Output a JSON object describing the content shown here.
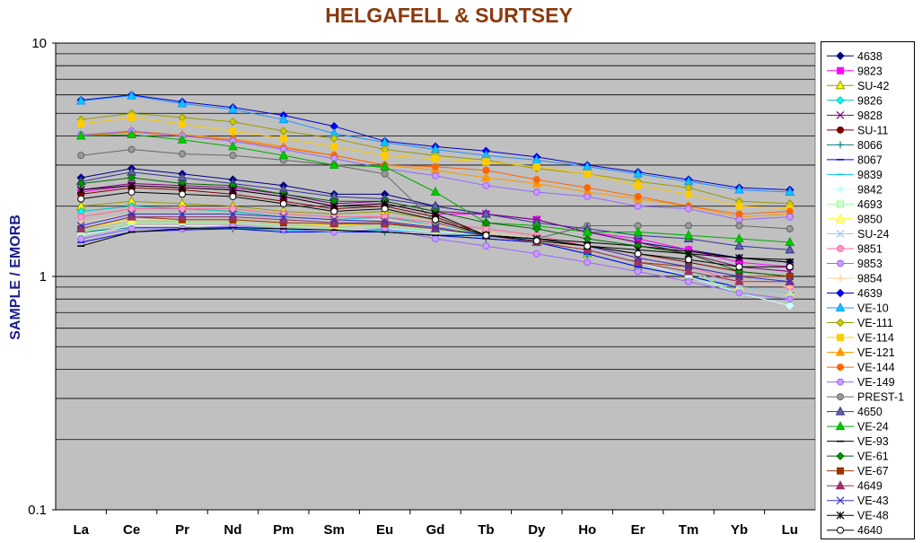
{
  "chart_data": {
    "type": "line",
    "title": "HELGAFELL & SURTSEY",
    "xlabel": "",
    "ylabel": "SAMPLE / EMORB",
    "yscale": "log",
    "ylim": [
      0.1,
      10
    ],
    "y_ticks": [
      "10",
      "1",
      "0.1"
    ],
    "grid": true,
    "legend_position": "right",
    "categories": [
      "La",
      "Ce",
      "Pr",
      "Nd",
      "Pm",
      "Sm",
      "Eu",
      "Gd",
      "Tb",
      "Dy",
      "Ho",
      "Er",
      "Tm",
      "Yb",
      "Lu"
    ],
    "series": [
      {
        "name": "4638",
        "color": "#000080",
        "marker": "diamond",
        "fill": "#000080",
        "values": [
          2.65,
          2.9,
          2.75,
          2.6,
          2.45,
          2.25,
          2.25,
          2.0,
          1.85,
          1.75,
          1.55,
          1.4,
          1.3,
          1.2,
          1.15
        ]
      },
      {
        "name": "9823",
        "color": "#ff00ff",
        "marker": "square",
        "fill": "#ff00ff",
        "values": [
          2.3,
          2.45,
          2.4,
          2.35,
          2.2,
          2.0,
          2.05,
          1.85,
          1.85,
          1.75,
          1.55,
          1.45,
          1.3,
          1.15,
          1.1
        ]
      },
      {
        "name": "SU-42",
        "color": "#999900",
        "marker": "triangle",
        "fill": "#ffff00",
        "values": [
          2.0,
          2.1,
          2.05,
          2.0,
          1.9,
          1.85,
          1.9,
          1.75,
          1.5,
          1.4,
          1.25,
          1.1,
          1.0,
          0.9,
          0.85
        ]
      },
      {
        "name": "9826",
        "color": "#00bfbf",
        "marker": "diamond",
        "fill": "#00ffff",
        "values": [
          1.9,
          2.0,
          1.95,
          1.9,
          1.8,
          1.75,
          1.8,
          1.65,
          1.5,
          1.4,
          1.25,
          1.1,
          1.0,
          0.85,
          0.8
        ]
      },
      {
        "name": "9828",
        "color": "#800080",
        "marker": "x",
        "fill": "none",
        "values": [
          2.35,
          2.5,
          2.45,
          2.4,
          2.25,
          2.05,
          2.1,
          1.9,
          1.85,
          1.75,
          1.55,
          1.4,
          1.25,
          1.1,
          1.05
        ]
      },
      {
        "name": "SU-11",
        "color": "#800000",
        "marker": "circle",
        "fill": "#800000",
        "values": [
          2.25,
          2.4,
          2.35,
          2.25,
          2.1,
          1.95,
          2.0,
          1.8,
          1.5,
          1.45,
          1.35,
          1.25,
          1.15,
          1.05,
          1.0
        ]
      },
      {
        "name": "8066",
        "color": "#008080",
        "marker": "plus",
        "fill": "none",
        "values": [
          1.55,
          1.62,
          1.62,
          1.6,
          1.58,
          1.55,
          1.55,
          1.5,
          1.45,
          1.4,
          1.25,
          1.1,
          1.0,
          0.9,
          0.85
        ]
      },
      {
        "name": "8067",
        "color": "#0000ff",
        "marker": "dash",
        "fill": "none",
        "values": [
          1.4,
          1.55,
          1.58,
          1.6,
          1.55,
          1.55,
          1.55,
          1.5,
          1.45,
          1.4,
          1.25,
          1.1,
          1.0,
          0.9,
          0.85
        ]
      },
      {
        "name": "9839",
        "color": "#00ccff",
        "marker": "dash",
        "fill": "none",
        "values": [
          1.45,
          1.6,
          1.6,
          1.62,
          1.58,
          1.55,
          1.58,
          1.55,
          1.48,
          1.45,
          1.3,
          1.15,
          1.05,
          0.95,
          0.9
        ]
      },
      {
        "name": "9842",
        "color": "#ccffff",
        "marker": "diamond",
        "fill": "#ccffff",
        "values": [
          1.5,
          1.65,
          1.65,
          1.65,
          1.6,
          1.58,
          1.6,
          1.55,
          1.5,
          1.45,
          1.3,
          1.15,
          1.0,
          0.85,
          0.75
        ]
      },
      {
        "name": "4693",
        "color": "#99ff99",
        "marker": "square",
        "fill": "#ccffcc",
        "values": [
          1.55,
          1.7,
          1.7,
          1.7,
          1.65,
          1.6,
          1.65,
          1.58,
          1.5,
          1.45,
          1.3,
          1.15,
          1.05,
          0.85,
          0.8
        ]
      },
      {
        "name": "9850",
        "color": "#ffff00",
        "marker": "triangle",
        "fill": "#ffff99",
        "values": [
          1.6,
          1.75,
          1.75,
          1.75,
          1.7,
          1.65,
          1.7,
          1.6,
          1.55,
          1.45,
          1.3,
          1.15,
          1.05,
          0.9,
          0.85
        ]
      },
      {
        "name": "SU-24",
        "color": "#99ccff",
        "marker": "x",
        "fill": "none",
        "values": [
          1.65,
          1.8,
          1.8,
          1.8,
          1.75,
          1.7,
          1.72,
          1.62,
          1.55,
          1.45,
          1.3,
          1.15,
          1.05,
          0.9,
          0.85
        ]
      },
      {
        "name": "9851",
        "color": "#ff6699",
        "marker": "circle",
        "fill": "#ff99cc",
        "values": [
          1.8,
          1.95,
          1.95,
          1.95,
          1.85,
          1.8,
          1.8,
          1.7,
          1.6,
          1.5,
          1.35,
          1.2,
          1.1,
          0.95,
          0.9
        ]
      },
      {
        "name": "9853",
        "color": "#9966ff",
        "marker": "circle",
        "fill": "#cc99ff",
        "values": [
          1.45,
          1.6,
          1.6,
          1.65,
          1.6,
          1.55,
          1.6,
          1.45,
          1.35,
          1.25,
          1.15,
          1.05,
          0.95,
          0.85,
          0.8
        ]
      },
      {
        "name": "9854",
        "color": "#ffcc99",
        "marker": "plus",
        "fill": "none",
        "values": [
          1.7,
          1.85,
          1.85,
          1.85,
          1.8,
          1.75,
          1.75,
          1.65,
          1.55,
          1.45,
          1.3,
          1.15,
          1.05,
          0.95,
          0.9
        ]
      },
      {
        "name": "4639",
        "color": "#0000cc",
        "marker": "diamond",
        "fill": "#0000ff",
        "values": [
          5.7,
          6.0,
          5.6,
          5.3,
          4.9,
          4.4,
          3.8,
          3.6,
          3.45,
          3.25,
          3.0,
          2.8,
          2.6,
          2.4,
          2.35
        ]
      },
      {
        "name": "VE-10",
        "color": "#1e90ff",
        "marker": "triangle",
        "fill": "#00ccff",
        "values": [
          5.65,
          5.95,
          5.5,
          5.2,
          4.7,
          4.1,
          3.75,
          3.5,
          3.3,
          3.15,
          2.95,
          2.75,
          2.55,
          2.35,
          2.3
        ]
      },
      {
        "name": "VE-111",
        "color": "#999900",
        "marker": "diamond",
        "fill": "#cccc00",
        "values": [
          4.7,
          5.0,
          4.8,
          4.6,
          4.2,
          3.9,
          3.5,
          3.3,
          3.15,
          2.9,
          2.75,
          2.55,
          2.4,
          2.1,
          2.05
        ]
      },
      {
        "name": "VE-114",
        "color": "#ffcc00",
        "marker": "square",
        "fill": "#ffcc00",
        "values": [
          4.5,
          4.8,
          4.5,
          4.2,
          3.9,
          3.6,
          3.3,
          3.2,
          3.1,
          2.95,
          2.75,
          2.45,
          2.25,
          2.0,
          1.95
        ]
      },
      {
        "name": "VE-121",
        "color": "#ff9900",
        "marker": "triangle",
        "fill": "#ff9900",
        "values": [
          4.0,
          4.2,
          4.05,
          3.9,
          3.6,
          3.3,
          3.0,
          2.85,
          2.65,
          2.5,
          2.3,
          2.15,
          2.0,
          1.8,
          1.85
        ]
      },
      {
        "name": "VE-144",
        "color": "#ff6600",
        "marker": "circle",
        "fill": "#ff6600",
        "values": [
          4.0,
          4.15,
          4.0,
          3.85,
          3.55,
          3.3,
          3.0,
          2.95,
          2.85,
          2.6,
          2.4,
          2.2,
          2.0,
          1.85,
          1.9
        ]
      },
      {
        "name": "VE-149",
        "color": "#9966ff",
        "marker": "circle",
        "fill": "#cc99ff",
        "values": [
          4.05,
          4.2,
          4.0,
          3.8,
          3.5,
          3.2,
          2.9,
          2.7,
          2.45,
          2.3,
          2.2,
          2.0,
          1.95,
          1.75,
          1.8
        ]
      },
      {
        "name": "PREST-1",
        "color": "#666666",
        "marker": "circle",
        "fill": "#999999",
        "values": [
          3.3,
          3.5,
          3.35,
          3.3,
          3.15,
          3.0,
          2.75,
          1.7,
          1.5,
          1.45,
          1.65,
          1.65,
          1.65,
          1.65,
          1.6
        ]
      },
      {
        "name": "4650",
        "color": "#333399",
        "marker": "triangle",
        "fill": "#666699",
        "values": [
          2.55,
          2.8,
          2.65,
          2.5,
          2.35,
          2.2,
          2.15,
          2.0,
          1.85,
          1.7,
          1.6,
          1.5,
          1.45,
          1.35,
          1.3
        ]
      },
      {
        "name": "VE-24",
        "color": "#00aa00",
        "marker": "triangle",
        "fill": "#00cc00",
        "values": [
          4.0,
          4.05,
          3.85,
          3.6,
          3.3,
          3.0,
          2.95,
          2.3,
          1.7,
          1.65,
          1.55,
          1.55,
          1.5,
          1.45,
          1.4
        ]
      },
      {
        "name": "VE-93",
        "color": "#000000",
        "marker": "dash",
        "fill": "none",
        "values": [
          1.35,
          1.55,
          1.6,
          1.62,
          1.6,
          1.58,
          1.55,
          1.5,
          1.5,
          1.45,
          1.4,
          1.35,
          1.28,
          1.2,
          1.18
        ]
      },
      {
        "name": "VE-61",
        "color": "#006600",
        "marker": "diamond",
        "fill": "#009900",
        "values": [
          2.5,
          2.65,
          2.5,
          2.45,
          2.25,
          2.1,
          2.1,
          1.9,
          1.7,
          1.6,
          1.45,
          1.35,
          1.25,
          1.05,
          1.0
        ]
      },
      {
        "name": "VE-67",
        "color": "#993300",
        "marker": "square",
        "fill": "#993300",
        "values": [
          1.6,
          1.8,
          1.75,
          1.75,
          1.7,
          1.68,
          1.68,
          1.6,
          1.5,
          1.4,
          1.3,
          1.15,
          1.1,
          1.0,
          1.0
        ]
      },
      {
        "name": "4649",
        "color": "#993366",
        "marker": "triangle",
        "fill": "#993366",
        "values": [
          1.6,
          1.8,
          1.8,
          1.8,
          1.75,
          1.7,
          1.7,
          1.6,
          1.5,
          1.4,
          1.3,
          1.15,
          1.05,
          0.95,
          0.95
        ]
      },
      {
        "name": "VE-43",
        "color": "#3333cc",
        "marker": "x",
        "fill": "none",
        "values": [
          1.65,
          1.85,
          1.85,
          1.85,
          1.8,
          1.75,
          1.72,
          1.62,
          1.5,
          1.45,
          1.35,
          1.2,
          1.1,
          1.0,
          0.95
        ]
      },
      {
        "name": "VE-48",
        "color": "#000000",
        "marker": "star",
        "fill": "none",
        "values": [
          2.35,
          2.45,
          2.4,
          2.35,
          2.2,
          2.0,
          2.05,
          1.85,
          1.5,
          1.45,
          1.35,
          1.3,
          1.25,
          1.2,
          1.15
        ]
      },
      {
        "name": "4640",
        "color": "#000000",
        "marker": "circle",
        "fill": "#ffffff",
        "values": [
          2.15,
          2.3,
          2.25,
          2.2,
          2.05,
          1.9,
          1.95,
          1.75,
          1.5,
          1.42,
          1.35,
          1.25,
          1.18,
          1.1,
          1.1
        ]
      }
    ]
  }
}
